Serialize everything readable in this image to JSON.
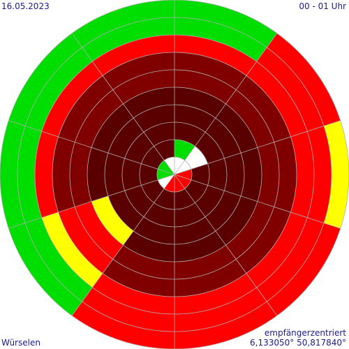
{
  "header": {
    "date": "16.05.2023",
    "time_range": "00 - 01 Uhr"
  },
  "footer": {
    "location": "Würselen",
    "mode": "empfängerzentriert",
    "coordinates": "6,133050° 50,817840°"
  },
  "chart_data": {
    "type": "polar-heatmap",
    "sector_count": 10,
    "ring_count": 10,
    "start_angle_deg": 0,
    "direction": "clockwise",
    "grid": true,
    "colors": {
      "dark": "#5a0000",
      "darkred": "#800000",
      "medred": "#a00000",
      "red": "#ff0000",
      "yellow": "#ffff00",
      "green": "#00dd00",
      "empty": "#ffffff"
    },
    "sectors": [
      [
        "empty",
        "green",
        "dark",
        "dark",
        "dark",
        "darkred",
        "darkred",
        "red",
        "green",
        "green"
      ],
      [
        "empty",
        "empty",
        "dark",
        "dark",
        "dark",
        "darkred",
        "darkred",
        "red",
        "red",
        "red"
      ],
      [
        "red",
        "dark",
        "dark",
        "dark",
        "dark",
        "darkred",
        "darkred",
        "red",
        "red",
        "yellow"
      ],
      [
        "red",
        "dark",
        "dark",
        "dark",
        "dark",
        "darkred",
        "darkred",
        "red",
        "red",
        "red"
      ],
      [
        "red",
        "dark",
        "dark",
        "dark",
        "dark",
        "darkred",
        "darkred",
        "red",
        "red",
        "red"
      ],
      [
        "red",
        "dark",
        "dark",
        "dark",
        "dark",
        "darkred",
        "darkred",
        "red",
        "red",
        "red"
      ],
      [
        "empty",
        "dark",
        "dark",
        "dark",
        "yellow",
        "red",
        "red",
        "yellow",
        "green",
        "green"
      ],
      [
        "green",
        "dark",
        "dark",
        "dark",
        "dark",
        "darkred",
        "darkred",
        "red",
        "green",
        "green"
      ],
      [
        "green",
        "dark",
        "dark",
        "dark",
        "dark",
        "darkred",
        "darkred",
        "red",
        "green",
        "green"
      ],
      [
        "empty",
        "dark",
        "dark",
        "dark",
        "dark",
        "darkred",
        "darkred",
        "red",
        "green",
        "green"
      ]
    ]
  }
}
